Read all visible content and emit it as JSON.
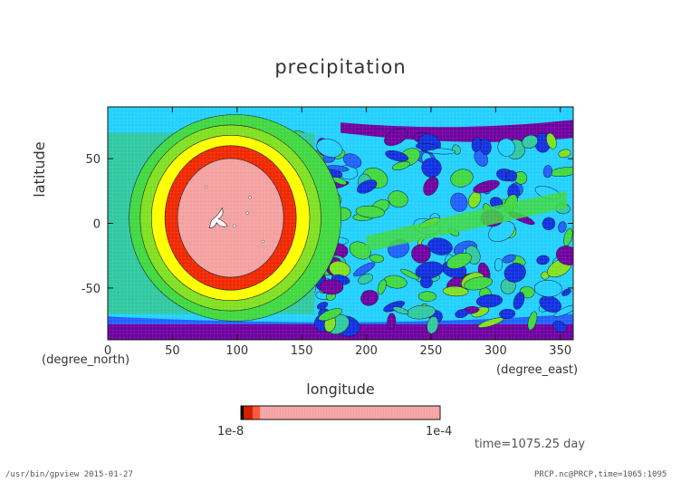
{
  "chart_data": {
    "type": "heatmap",
    "title": "precipitation",
    "xlabel": "longitude",
    "ylabel": "latitude",
    "x_unit": "(degree_east)",
    "y_unit": "(degree_north)",
    "xlim": [
      0,
      360
    ],
    "ylim": [
      -90,
      90
    ],
    "x_ticks": [
      "0",
      "50",
      "100",
      "150",
      "200",
      "250",
      "300",
      "350"
    ],
    "y_ticks": [
      "50",
      "0",
      "-50"
    ],
    "colorbar": {
      "left_label": "1e-8",
      "right_label": "1e-4",
      "colors": [
        "#000000",
        "#d42000",
        "#ff5a3c",
        "#f4a0a0"
      ]
    },
    "levels_colors": {
      "purple": "#7000a0",
      "deep_blue": "#1030e0",
      "blue": "#2060ff",
      "cyan": "#22d0ff",
      "teal": "#30c8a0",
      "green": "#40d840",
      "lightgreen": "#80e020",
      "yellow": "#ffff00",
      "red": "#f02800",
      "pink": "#f4a0a0"
    },
    "feature": {
      "description_values": {
        "center_lon": 95,
        "center_lat": 0
      }
    }
  },
  "footer": {
    "left": "/usr/bin/gpview  2015-01-27",
    "right": "PRCP.nc@PRCP,time=1065:1095"
  },
  "time_label": "time=1075.25 day"
}
